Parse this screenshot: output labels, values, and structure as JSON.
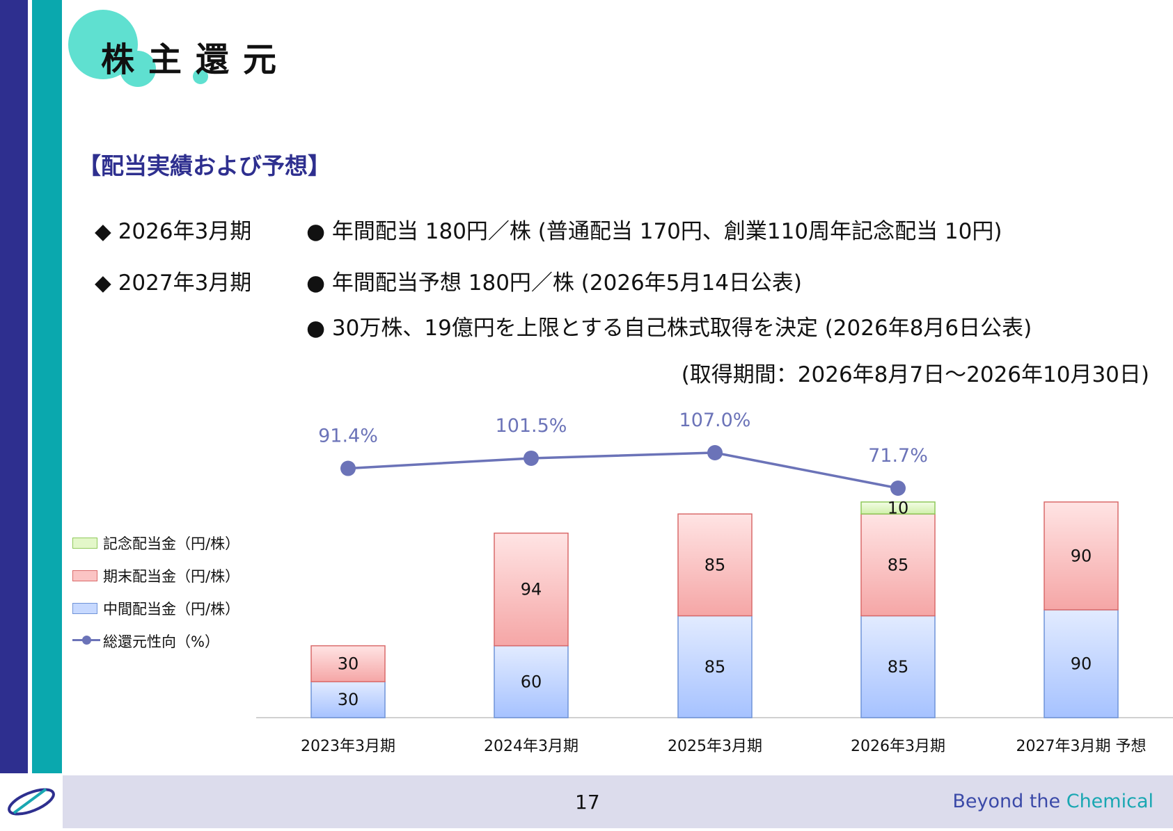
{
  "header": {
    "title": "株主還元"
  },
  "section": {
    "title": "【配当実績および予想】"
  },
  "bullets": {
    "row1": {
      "period": "◆ 2026年3月期",
      "items": [
        "● 年間配当 180円／株 (普通配当 170円、創業110周年記念配当 10円)"
      ]
    },
    "row2": {
      "period": "◆ 2027年3月期",
      "items": [
        "● 年間配当予想 180円／株 (2026年5月14日公表)",
        "● 30万株、19億円を上限とする自己株式取得を決定 (2026年8月6日公表)",
        "(取得期間：2026年8月7日～2026年10月30日)"
      ]
    }
  },
  "chart_data": {
    "type": "bar",
    "stacked": true,
    "categories": [
      "2023年3月期",
      "2024年3月期",
      "2025年3月期",
      "2026年3月期",
      "2027年3月期 予想"
    ],
    "series": [
      {
        "name": "中間配当金（円/株）",
        "values": [
          30,
          60,
          85,
          85,
          90
        ],
        "color": "#c7d9ff"
      },
      {
        "name": "期末配当金（円/株）",
        "values": [
          30,
          94,
          85,
          85,
          90
        ],
        "color": "#fbc4c4"
      },
      {
        "name": "記念配当金（円/株）",
        "values": [
          null,
          null,
          null,
          10,
          null
        ],
        "color": "#e3f7c9"
      }
    ],
    "line_series": {
      "name": "総還元性向（%）",
      "values": [
        91.4,
        101.5,
        107.0,
        71.7,
        null
      ],
      "labels": [
        "91.4%",
        "101.5%",
        "107.0%",
        "71.7%",
        ""
      ],
      "color": "#6b73b8"
    },
    "legend_position": "left"
  },
  "footer": {
    "page_number": "17",
    "tagline_part1": "Beyond the ",
    "tagline_part2": "Chemical",
    "tagline_color1": "#3b4aa8",
    "tagline_color2": "#19a7b2"
  },
  "colors": {
    "navy": "#2e2f8f",
    "teal": "#0aa8ae",
    "title_circle": "#5fe0d0"
  }
}
